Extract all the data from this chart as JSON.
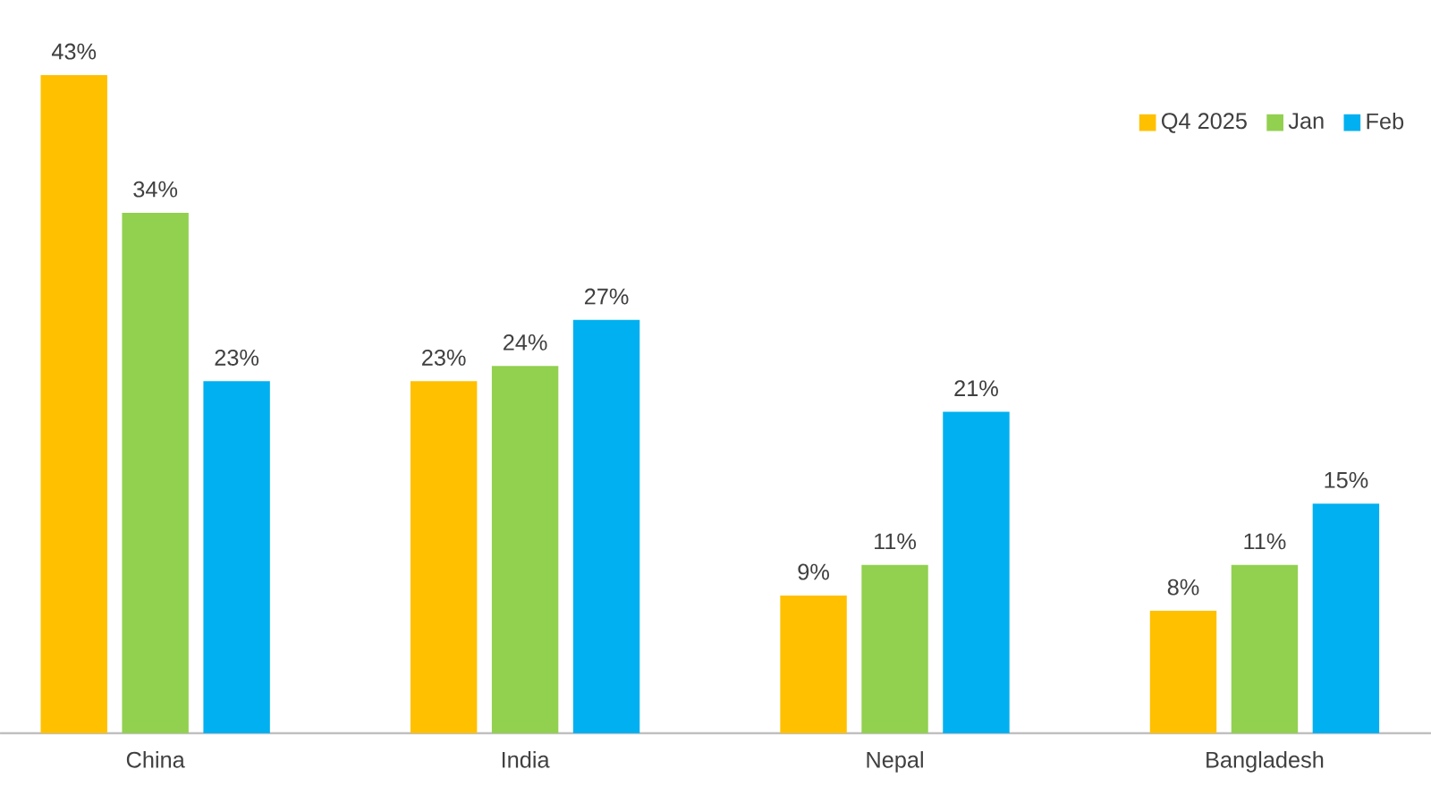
{
  "chart_data": {
    "type": "bar",
    "categories": [
      "China",
      "India",
      "Nepal",
      "Bangladesh"
    ],
    "series": [
      {
        "name": "Q4 2025",
        "color": "#ffc000",
        "values": [
          43,
          23,
          9,
          8
        ],
        "value_labels": [
          "43%",
          "23%",
          "9%",
          "8%"
        ]
      },
      {
        "name": "Jan",
        "color": "#92d050",
        "values": [
          34,
          24,
          11,
          11
        ],
        "value_labels": [
          "34%",
          "24%",
          "11%",
          "11%"
        ]
      },
      {
        "name": "Feb",
        "color": "#00b0f0",
        "values": [
          23,
          27,
          21,
          15
        ],
        "value_labels": [
          "23%",
          "27%",
          "21%",
          "15%"
        ]
      }
    ],
    "legend": "top right"
  }
}
